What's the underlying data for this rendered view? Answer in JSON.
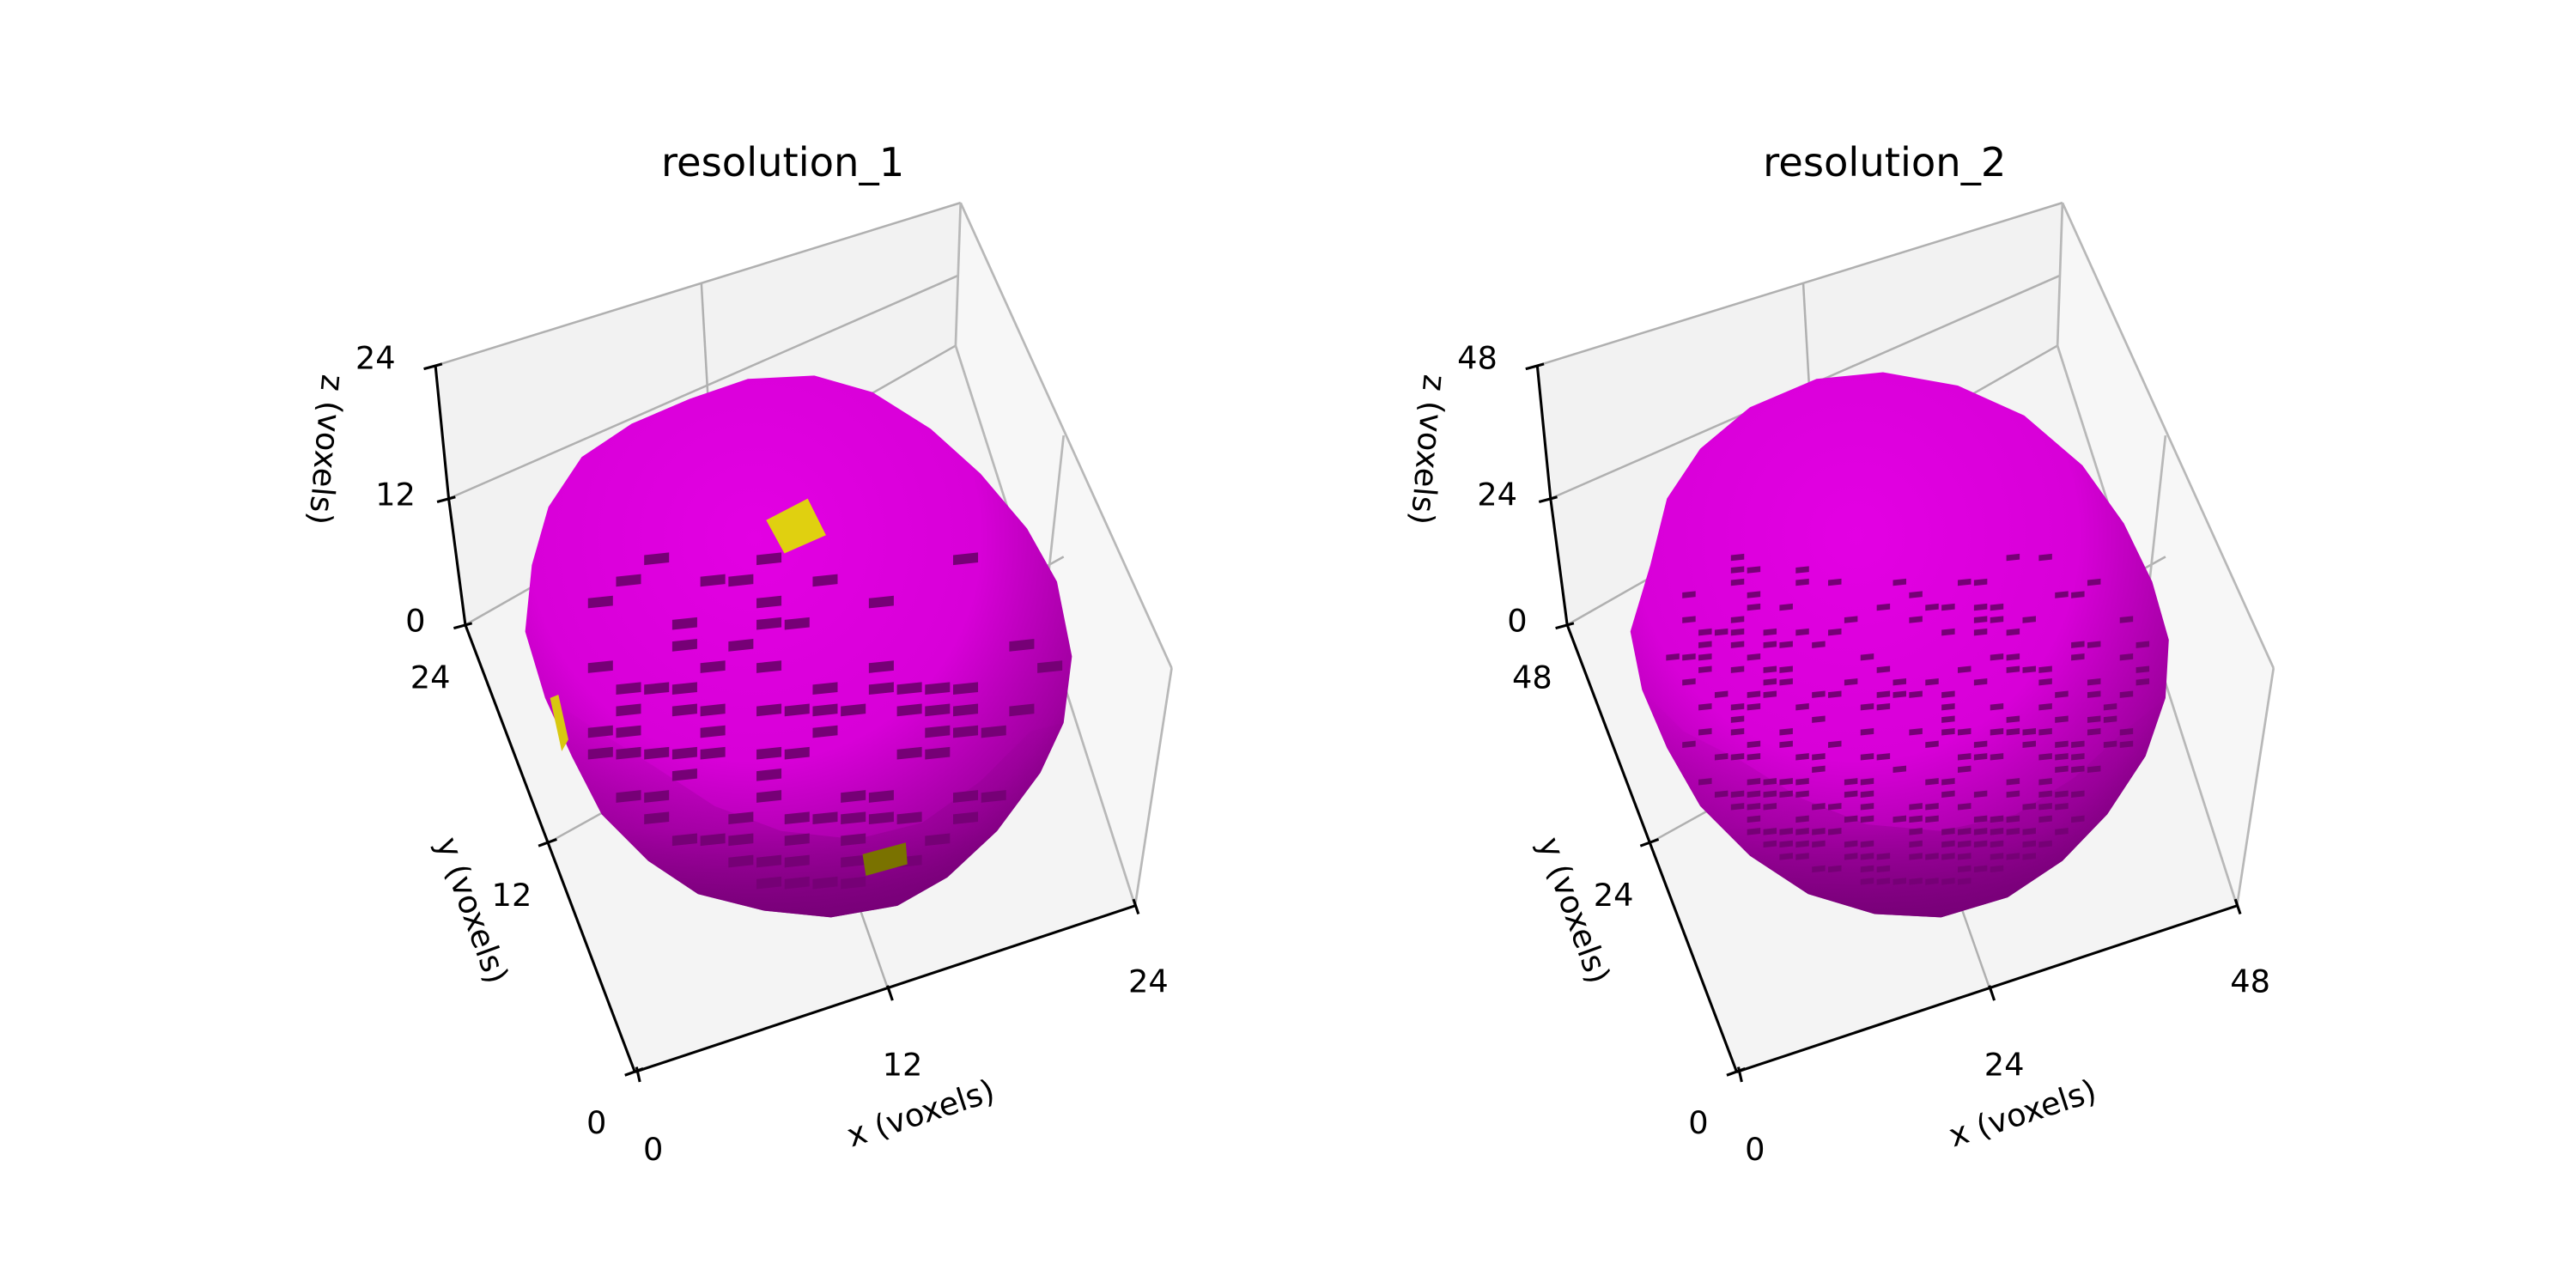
{
  "chart_data": [
    {
      "type": "voxel-3d",
      "title": "resolution_1",
      "xlabel": "x (voxels)",
      "ylabel": "y (voxels)",
      "zlabel": "z (voxels)",
      "xlim": [
        0,
        24
      ],
      "ylim": [
        0,
        24
      ],
      "zlim": [
        0,
        24
      ],
      "xticks": [
        "0",
        "12",
        "24"
      ],
      "yticks": [
        "0",
        "12",
        "24"
      ],
      "zticks": [
        "0",
        "12",
        "24"
      ],
      "grid": true,
      "object": "voxelized sphere, ~24-voxel diameter",
      "colors": {
        "face_light": "#e100e1",
        "face_dark": "#760076",
        "highlight": "#e0d010",
        "highlight_shadow": "#7a7200"
      },
      "highlighted_voxels": 3
    },
    {
      "type": "voxel-3d",
      "title": "resolution_2",
      "xlabel": "x (voxels)",
      "ylabel": "y (voxels)",
      "zlabel": "z (voxels)",
      "xlim": [
        0,
        48
      ],
      "ylim": [
        0,
        48
      ],
      "zlim": [
        0,
        48
      ],
      "xticks": [
        "0",
        "24",
        "48"
      ],
      "yticks": [
        "0",
        "24",
        "48"
      ],
      "zticks": [
        "0",
        "24",
        "48"
      ],
      "grid": true,
      "object": "voxelized sphere, ~48-voxel diameter",
      "colors": {
        "face_light": "#e100e1",
        "face_dark": "#760076"
      },
      "highlighted_voxels": 0
    }
  ],
  "plots": [
    {
      "title": "resolution_1",
      "xlabel": "x (voxels)",
      "ylabel": "y (voxels)",
      "zlabel": "z (voxels)",
      "z_ticks": [
        "24",
        "12",
        "0"
      ],
      "y_ticks": [
        "24",
        "12",
        "0"
      ],
      "x_ticks": [
        "0",
        "12",
        "24"
      ]
    },
    {
      "title": "resolution_2",
      "xlabel": "x (voxels)",
      "ylabel": "y (voxels)",
      "zlabel": "z (voxels)",
      "z_ticks": [
        "48",
        "24",
        "0"
      ],
      "y_ticks": [
        "48",
        "24",
        "0"
      ],
      "x_ticks": [
        "0",
        "24",
        "48"
      ]
    }
  ]
}
